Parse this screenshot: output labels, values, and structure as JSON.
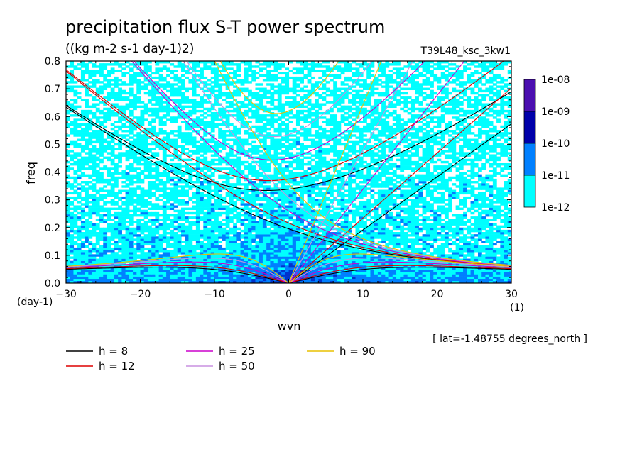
{
  "chart_data": {
    "type": "heatmap",
    "title": "precipitation flux S-T power spectrum",
    "subtitle": "((kg m-2 s-1 day-1)2)",
    "run_label": "T39L48_ksc_3kw1",
    "xlabel": "wvn",
    "ylabel": "freq",
    "x_unit": "(1)",
    "y_unit": "(day-1)",
    "xlim": [
      -30,
      30
    ],
    "ylim": [
      0,
      0.8
    ],
    "x_ticks": [
      "-30",
      "-20",
      "-10",
      "0",
      "10",
      "20",
      "30"
    ],
    "y_ticks": [
      "0.0",
      "0.1",
      "0.2",
      "0.3",
      "0.4",
      "0.5",
      "0.6",
      "0.7",
      "0.8"
    ],
    "colorbar": {
      "levels": [
        "1e-12",
        "1e-11",
        "1e-10",
        "1e-09",
        "1e-08"
      ],
      "colors": [
        "#00ffff",
        "#0080ff",
        "#0033cc",
        "#0000aa",
        "#4b0fb0"
      ]
    },
    "dispersion_curves": [
      {
        "name": "h =  8",
        "h": 8,
        "color": "#000000"
      },
      {
        "name": "h = 12",
        "h": 12,
        "color": "#dd0000"
      },
      {
        "name": "h = 25",
        "h": 25,
        "color": "#cc00cc"
      },
      {
        "name": "h = 50",
        "h": 50,
        "color": "#c890e0"
      },
      {
        "name": "h = 90",
        "h": 90,
        "color": "#e8c000"
      }
    ],
    "footnote": "[ lat=-1.48755 degrees_north ]"
  }
}
